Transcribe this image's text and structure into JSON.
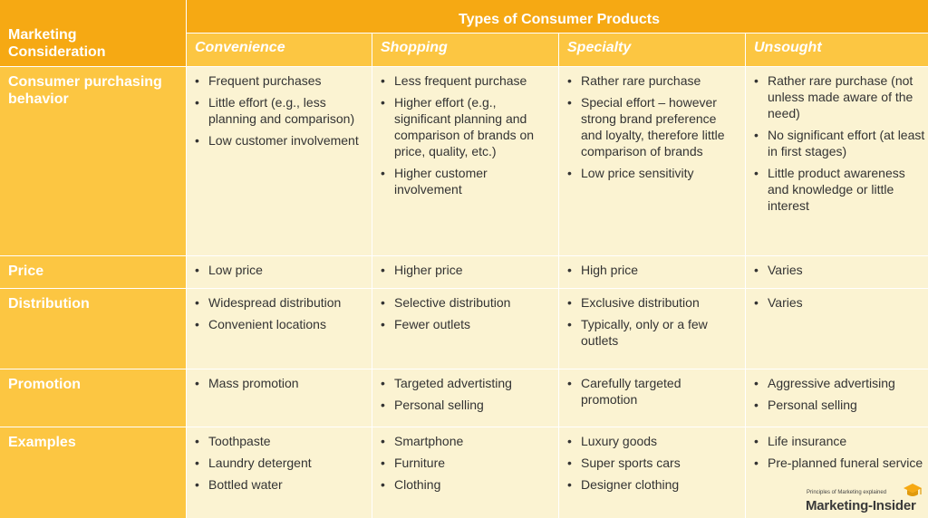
{
  "table": {
    "corner_label": "Marketing\nConsideration",
    "header_title": "Types of Consumer Products",
    "product_types": [
      "Convenience",
      "Shopping",
      "Specialty",
      "Unsought"
    ],
    "rows": [
      {
        "label": "Consumer purchasing behavior",
        "cells": [
          [
            "Frequent purchases",
            "Little effort (e.g., less planning and comparison)",
            "Low customer involvement"
          ],
          [
            "Less frequent purchase",
            "Higher effort (e.g., significant planning and comparison of brands on price, quality, etc.)",
            "Higher customer involvement"
          ],
          [
            "Rather rare purchase",
            "Special effort – however strong brand preference and loyalty, therefore little comparison of brands",
            "Low price sensitivity"
          ],
          [
            "Rather rare purchase (not unless made aware of the need)",
            "No significant effort (at least in first stages)",
            "Little product awareness and knowledge or little interest"
          ]
        ]
      },
      {
        "label": "Price",
        "cells": [
          [
            "Low price"
          ],
          [
            "Higher price"
          ],
          [
            "High price"
          ],
          [
            "Varies"
          ]
        ]
      },
      {
        "label": "Distribution",
        "cells": [
          [
            "Widespread distribution",
            "Convenient locations"
          ],
          [
            "Selective distribution",
            "Fewer outlets"
          ],
          [
            "Exclusive distribution",
            "Typically, only or a few outlets"
          ],
          [
            "Varies"
          ]
        ]
      },
      {
        "label": "Promotion",
        "cells": [
          [
            "Mass promotion"
          ],
          [
            "Targeted advertisting",
            "Personal selling"
          ],
          [
            "Carefully targeted promotion"
          ],
          [
            "Aggressive advertising",
            "Personal selling"
          ]
        ]
      },
      {
        "label": "Examples",
        "cells": [
          [
            "Toothpaste",
            "Laundry detergent",
            "Bottled water"
          ],
          [
            "Smartphone",
            "Furniture",
            "Clothing"
          ],
          [
            "Luxury goods",
            "Super sports cars",
            "Designer clothing"
          ],
          [
            "Life insurance",
            "Pre-planned funeral service"
          ]
        ]
      }
    ]
  },
  "logo": {
    "tagline": "Principles of Marketing explained",
    "name": "Marketing-Insider",
    "icon": "graduation-cap-icon",
    "icon_color": "#f6a913"
  },
  "colors": {
    "header": "#f6a913",
    "subheader": "#fcc642",
    "cell_background": "#fbf3d2"
  }
}
